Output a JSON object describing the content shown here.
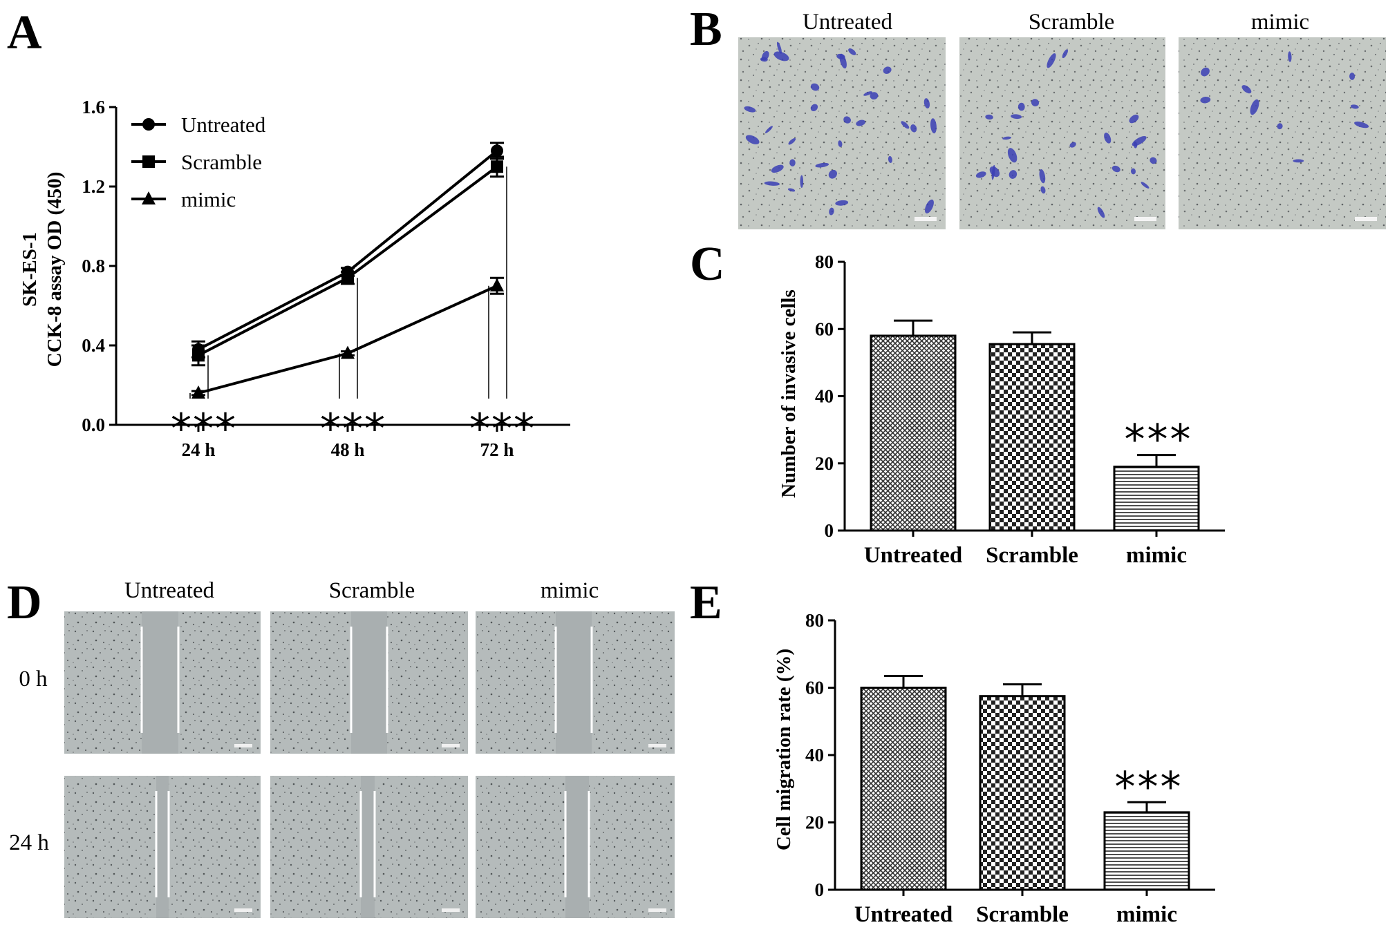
{
  "panels": {
    "A": "A",
    "B": "B",
    "C": "C",
    "D": "D",
    "E": "E"
  },
  "chart_data": [
    {
      "id": "A",
      "type": "line",
      "ylabel_line1": "SK-ES-1",
      "ylabel_line2": "CCK-8 assay OD (450)",
      "categories": [
        "24 h",
        "48 h",
        "72 h"
      ],
      "ylim": [
        0,
        1.6
      ],
      "yticks": [
        "0.0",
        "0.4",
        "0.8",
        "1.2",
        "1.6"
      ],
      "series": [
        {
          "name": "Untreated",
          "marker": "circle",
          "values": [
            0.38,
            0.77,
            1.38
          ],
          "errors": [
            0.04,
            0.02,
            0.04
          ]
        },
        {
          "name": "Scramble",
          "marker": "square",
          "values": [
            0.35,
            0.74,
            1.3
          ],
          "errors": [
            0.05,
            0.03,
            0.05
          ]
        },
        {
          "name": "mimic",
          "marker": "triangle",
          "values": [
            0.16,
            0.36,
            0.7
          ],
          "errors": [
            0.01,
            0.01,
            0.04
          ]
        }
      ],
      "significance": [
        "***",
        "***",
        "***"
      ],
      "legend": "top-left"
    },
    {
      "id": "C",
      "type": "bar",
      "ylabel": "Number of invasive cells",
      "categories": [
        "Untreated",
        "Scramble",
        "mimic"
      ],
      "values": [
        58,
        55.5,
        19
      ],
      "errors": [
        4.5,
        3.5,
        3.5
      ],
      "patterns": [
        "grid",
        "checker",
        "hlines"
      ],
      "ylim": [
        0,
        80
      ],
      "yticks": [
        "0",
        "20",
        "40",
        "60",
        "80"
      ],
      "significance": "***"
    },
    {
      "id": "E",
      "type": "bar",
      "ylabel": "Cell migration rate (%)",
      "categories": [
        "Untreated",
        "Scramble",
        "mimic"
      ],
      "values": [
        60,
        57.5,
        23
      ],
      "errors": [
        3.5,
        3.5,
        3
      ],
      "patterns": [
        "grid",
        "checker",
        "hlines"
      ],
      "ylim": [
        0,
        80
      ],
      "yticks": [
        "0",
        "20",
        "40",
        "60",
        "80"
      ],
      "significance": "***"
    }
  ],
  "invasion_images": {
    "labels": [
      "Untreated",
      "Scramble",
      "mimic"
    ]
  },
  "wound_images": {
    "columns": [
      "Untreated",
      "Scramble",
      "mimic"
    ],
    "rows": [
      "0 h",
      "24 h"
    ]
  }
}
